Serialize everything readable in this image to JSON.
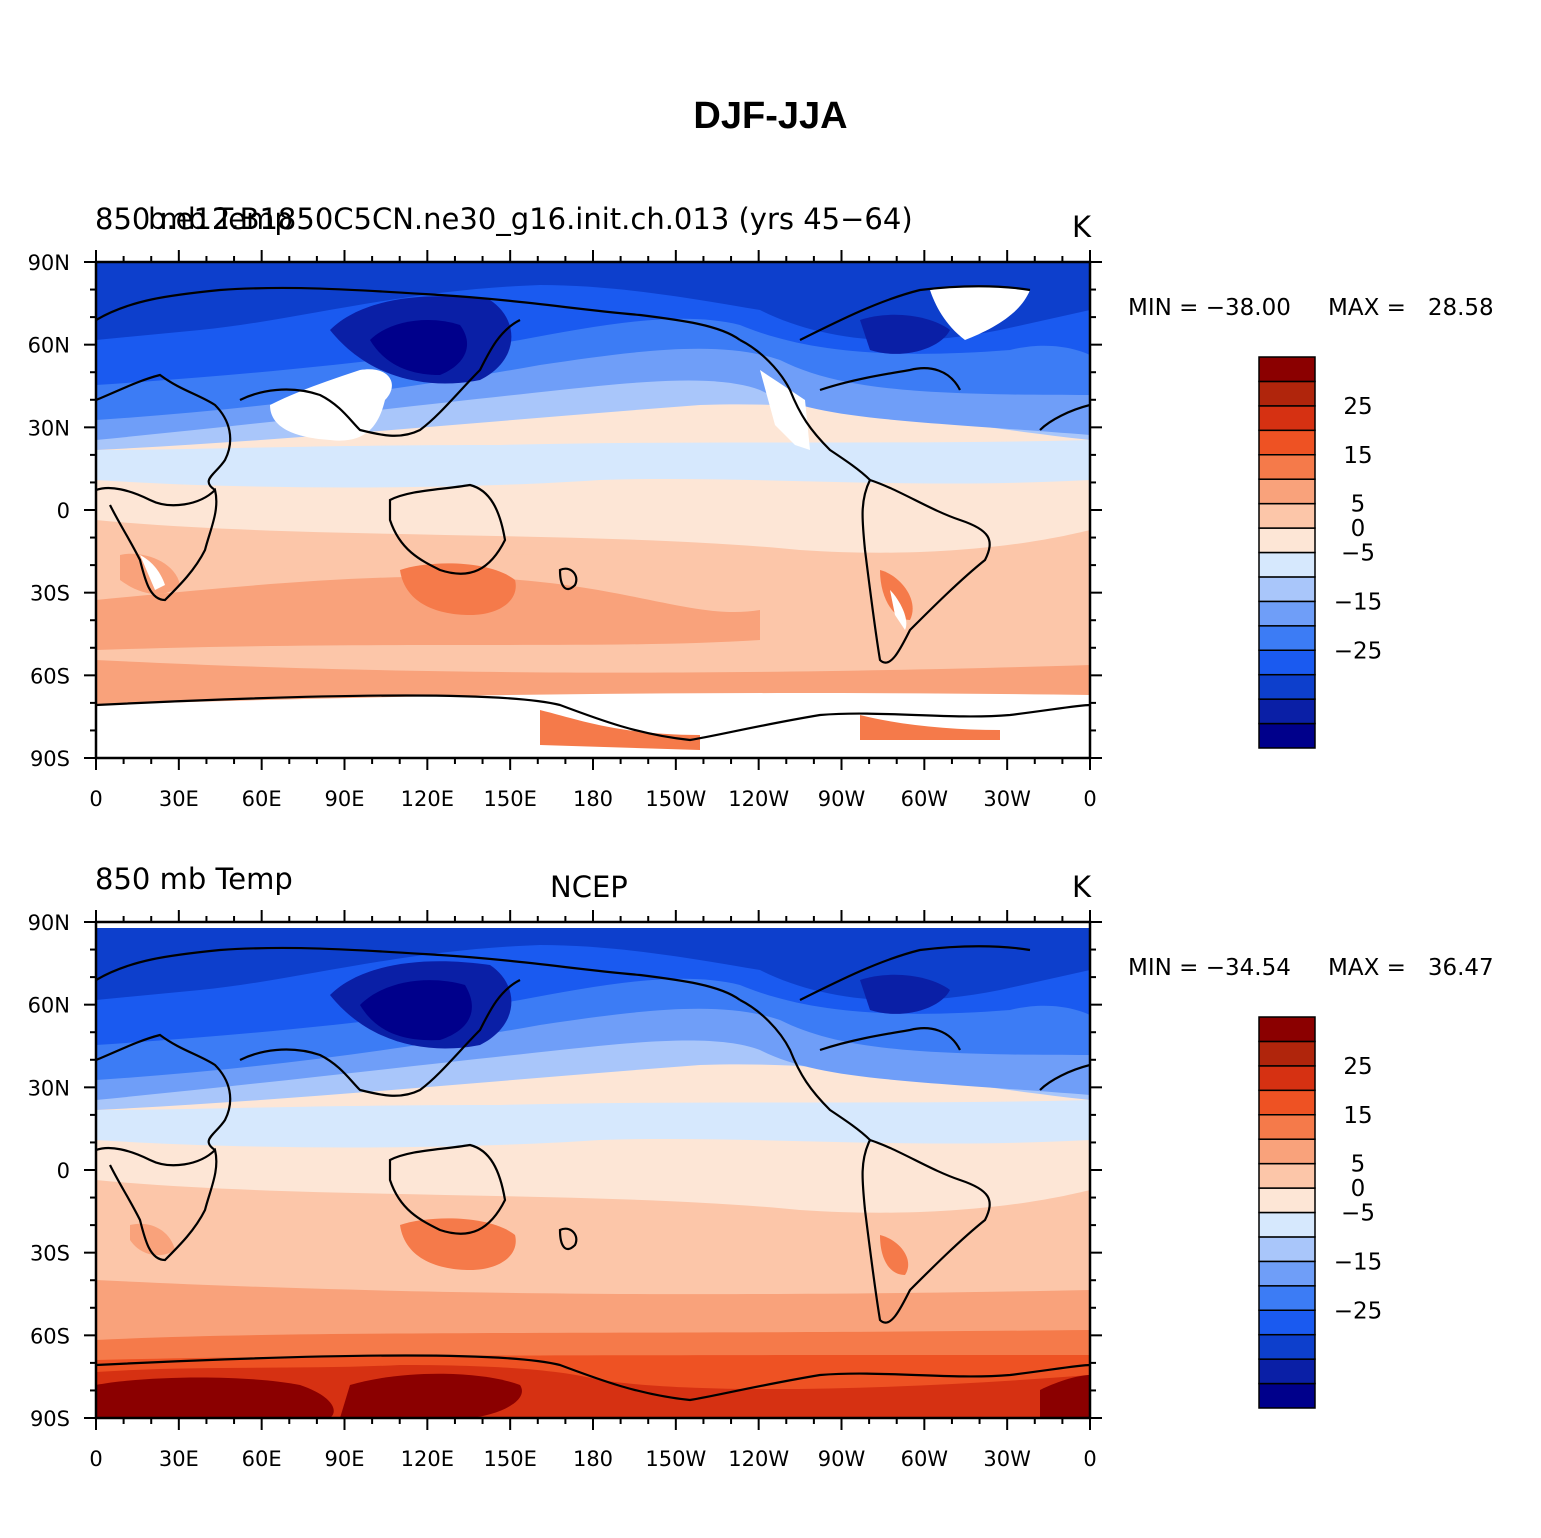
{
  "title": "DJF-JJA",
  "colorbar": {
    "colors": [
      "#00008b",
      "#0a1fa6",
      "#0d3fcc",
      "#1a5af0",
      "#3c7cf5",
      "#6f9ef8",
      "#a9c6fa",
      "#d6e8fd",
      "#fde6d6",
      "#fcc6a9",
      "#f9a27b",
      "#f57a4a",
      "#ee5223",
      "#d63112",
      "#b0250c",
      "#8b0000"
    ],
    "labels": [
      "25",
      "15",
      "5",
      "0",
      "−5",
      "−15",
      "−25"
    ],
    "levels": [
      25,
      15,
      5,
      0,
      -5,
      -15,
      -25
    ]
  },
  "axes": {
    "x_ticks": [
      "0",
      "30E",
      "60E",
      "90E",
      "120E",
      "150E",
      "180",
      "150W",
      "120W",
      "90W",
      "60W",
      "30W",
      "0"
    ],
    "y_ticks": [
      "90N",
      "60N",
      "30N",
      "0",
      "30S",
      "60S",
      "90S"
    ]
  },
  "panels": [
    {
      "id": "model",
      "left_title": "850 mb Temp",
      "center_title": "b.e12.B1850C5CN.ne30_g16.init.ch.013 (yrs 45−64)",
      "units": "K",
      "min_label": "MIN = −38.00",
      "max_label": "MAX =   28.58",
      "min_value": -38.0,
      "max_value": 28.58
    },
    {
      "id": "obs",
      "left_title": "850 mb Temp",
      "center_title": "NCEP",
      "units": "K",
      "min_label": "MIN = −34.54",
      "max_label": "MAX =   36.47",
      "min_value": -34.54,
      "max_value": 36.47
    }
  ]
}
